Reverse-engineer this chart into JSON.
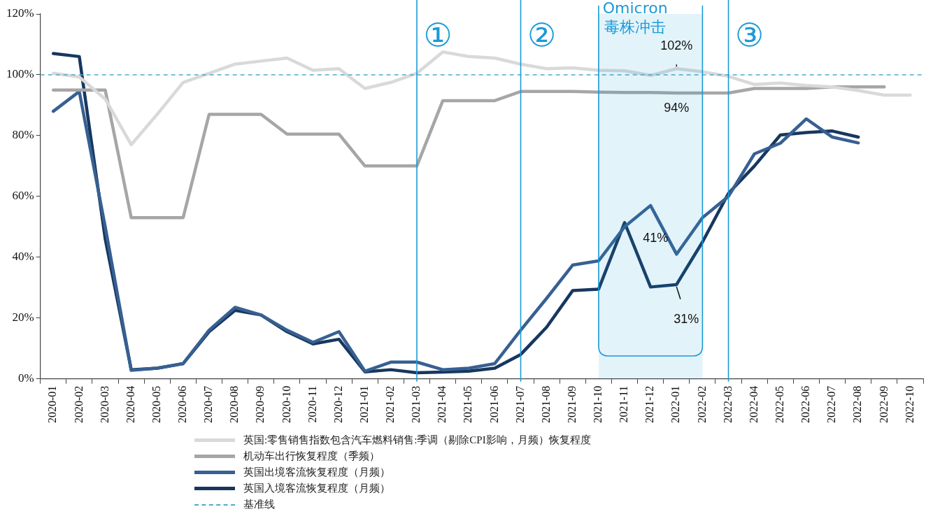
{
  "chart_data": {
    "type": "line",
    "categories": [
      "2020-01",
      "2020-02",
      "2020-03",
      "2020-04",
      "2020-05",
      "2020-06",
      "2020-07",
      "2020-08",
      "2020-09",
      "2020-10",
      "2020-11",
      "2020-12",
      "2021-01",
      "2021-02",
      "2021-03",
      "2021-04",
      "2021-05",
      "2021-06",
      "2021-07",
      "2021-08",
      "2021-09",
      "2021-10",
      "2021-11",
      "2021-12",
      "2022-01",
      "2022-02",
      "2022-03",
      "2022-04",
      "2022-05",
      "2022-06",
      "2022-07",
      "2022-08",
      "2022-09",
      "2022-10"
    ],
    "series": [
      {
        "name": "英国:零售销售指数包含汽车燃料销售:季调（剔除CPI影响，月频）恢复程度",
        "color": "#d9d9d9",
        "values": [
          100.5,
          99.3,
          92,
          77,
          87,
          97.5,
          100.5,
          103.5,
          104.5,
          105.5,
          101.5,
          102,
          95.5,
          97.5,
          100.5,
          107.5,
          106,
          105.5,
          103.5,
          102,
          102.3,
          101.5,
          101.3,
          99.8,
          102,
          101,
          99.5,
          96.8,
          97.3,
          96.5,
          96,
          94.8,
          93.3,
          93.3
        ]
      },
      {
        "name": "机动车出行恢复程度（季频）",
        "color": "#a6a6a6",
        "values": [
          95,
          95,
          95,
          53,
          53,
          53,
          87,
          87,
          87,
          80.5,
          80.5,
          80.5,
          70,
          70,
          70,
          91.5,
          91.5,
          91.5,
          94.5,
          94.5,
          94.5,
          94.3,
          94.2,
          94.2,
          94,
          94,
          94,
          95.5,
          95.5,
          95.5,
          96,
          96,
          96,
          null
        ]
      },
      {
        "name": "英国出境客流恢复程度（月频）",
        "color": "#376092",
        "values": [
          88,
          94.5,
          50,
          2.8,
          3.5,
          5,
          16,
          23.5,
          21,
          16,
          12,
          15.5,
          2.5,
          5.5,
          5.5,
          3,
          3.5,
          5,
          16,
          26.5,
          37.4,
          38.8,
          50,
          57,
          41,
          53,
          60,
          74,
          77.5,
          85.5,
          79.5,
          77.6,
          null,
          null
        ]
      },
      {
        "name": "英国入境客流恢复程度（月频）",
        "color": "#17375e",
        "values": [
          107,
          106,
          46,
          3,
          3.5,
          5,
          15.5,
          22.5,
          21,
          15.5,
          11.5,
          13,
          2.3,
          3,
          2,
          2.2,
          2.5,
          3.5,
          8,
          17,
          29,
          29.5,
          51.4,
          30.2,
          31,
          45,
          61,
          70,
          80.2,
          81,
          81.5,
          79.5,
          null,
          null
        ]
      }
    ],
    "ylim": [
      0,
      120
    ],
    "yticks": [
      {
        "value": 0,
        "label": "0%"
      },
      {
        "value": 20,
        "label": "20%"
      },
      {
        "value": 40,
        "label": "40%"
      },
      {
        "value": 60,
        "label": "60%"
      },
      {
        "value": 80,
        "label": "80%"
      },
      {
        "value": 100,
        "label": "100%"
      },
      {
        "value": 120,
        "label": "120%"
      }
    ],
    "ref_lines": [
      {
        "axis": "y",
        "value": 100,
        "label": "基准线",
        "color": "#4bacc6",
        "line_style": "dashed"
      },
      {
        "axis": "x",
        "value": "2021-03",
        "label": "①",
        "color": "#1a9bd7",
        "line_style": "solid"
      },
      {
        "axis": "x",
        "value": "2021-07",
        "label": "②",
        "color": "#1a9bd7",
        "line_style": "solid"
      },
      {
        "axis": "x",
        "value": "2022-03",
        "label": "③",
        "color": "#1a9bd7",
        "line_style": "solid"
      }
    ],
    "bands": [
      {
        "axis": "x",
        "from": "2021-10",
        "to": "2022-02",
        "label": "Omicron毒株冲击",
        "color": "#1a9bd7"
      }
    ],
    "annotations": [
      {
        "text": "102%",
        "x": "2022-01",
        "y": 102
      },
      {
        "text": "94%",
        "x": "2022-01",
        "y": 94
      },
      {
        "text": "41%",
        "x": "2022-01",
        "y": 41
      },
      {
        "text": "31%",
        "x": "2022-01",
        "y": 31
      }
    ],
    "grid": false,
    "legend": "bottom",
    "marker": "none",
    "line_style": "solid"
  }
}
